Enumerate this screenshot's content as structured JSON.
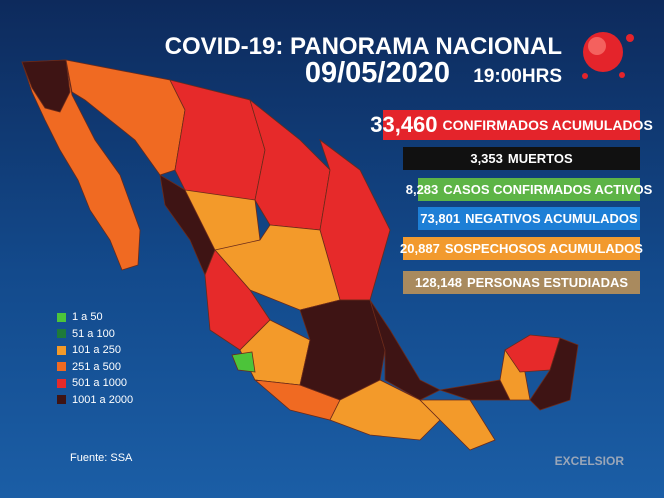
{
  "header": {
    "title": "COVID-19: PANORAMA NACIONAL",
    "date": "09/05/2020",
    "time": "19:00HRS"
  },
  "stats": [
    {
      "value": "33,460",
      "label": "CONFIRMADOS ACUMULADOS",
      "color": "#e4242b"
    },
    {
      "value": "3,353",
      "label": "MUERTOS",
      "color": "#111111"
    },
    {
      "value": "8,283",
      "label": "CASOS CONFIRMADOS ACTIVOS",
      "color": "#5db446"
    },
    {
      "value": "73,801",
      "label": "NEGATIVOS ACUMULADOS",
      "color": "#1d7fd6"
    },
    {
      "value": "20,887",
      "label": "SOSPECHOSOS ACUMULADOS",
      "color": "#f29a2e"
    },
    {
      "value": "128,148",
      "label": "PERSONAS ESTUDIADAS",
      "color": "#a98a5e"
    }
  ],
  "legend": [
    {
      "label": "1 a 50",
      "color": "#4cc43a"
    },
    {
      "label": "51 a 100",
      "color": "#1e7a3a"
    },
    {
      "label": "101 a 250",
      "color": "#f39a2a"
    },
    {
      "label": "251 a 500",
      "color": "#f06a22"
    },
    {
      "label": "501 a 1000",
      "color": "#e62a2a"
    },
    {
      "label": "1001 a 2000",
      "color": "#3e1414"
    }
  ],
  "source": "Fuente: SSA",
  "brand": "EXCELSIOR"
}
